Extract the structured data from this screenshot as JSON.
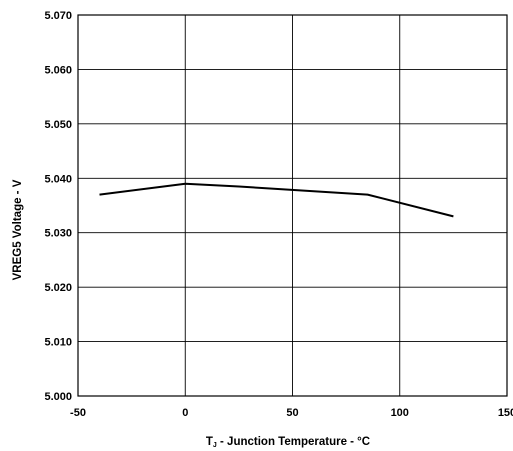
{
  "chart_data": {
    "type": "line",
    "title": "",
    "xlabel": {
      "main": "T",
      "sub": "J",
      "rest": " - Junction Temperature - °C"
    },
    "ylabel": "VREG5 Voltage - V",
    "xlim": [
      -50,
      150
    ],
    "ylim": [
      5.0,
      5.07
    ],
    "x_ticks": [
      -50,
      0,
      50,
      100,
      150
    ],
    "x_tick_labels": [
      "-50",
      "0",
      "50",
      "100",
      "150"
    ],
    "y_ticks": [
      5.0,
      5.01,
      5.02,
      5.03,
      5.04,
      5.05,
      5.06,
      5.07
    ],
    "y_tick_labels": [
      "5.000",
      "5.010",
      "5.020",
      "5.030",
      "5.040",
      "5.050",
      "5.060",
      "5.070"
    ],
    "grid": true,
    "colors": {
      "line": "#000000",
      "grid": "#000000",
      "background": "#ffffff"
    },
    "series": [
      {
        "x": [
          -40,
          0,
          25,
          85,
          125
        ],
        "y": [
          5.037,
          5.039,
          5.0385,
          5.037,
          5.033
        ]
      }
    ]
  }
}
